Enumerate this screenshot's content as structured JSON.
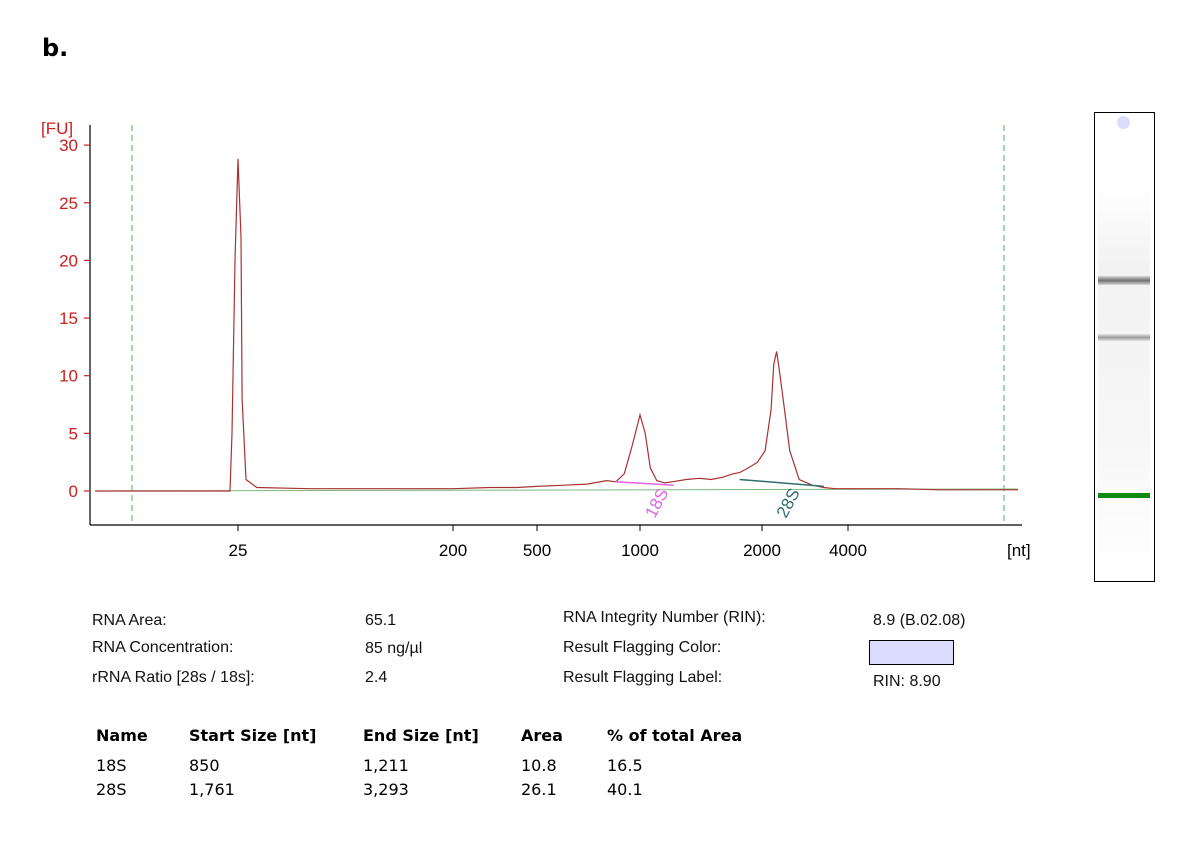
{
  "panel_label": "b.",
  "chart_data": {
    "type": "line",
    "y_unit": "[FU]",
    "x_unit": "[nt]",
    "y_ticks": [
      0,
      5,
      10,
      15,
      20,
      25,
      30
    ],
    "ylim": [
      -3,
      31
    ],
    "x_ticks": [
      "25",
      "200",
      "500",
      "1000",
      "2000",
      "4000"
    ],
    "x_scale": "log-like (electropherogram size axis)",
    "grid": false,
    "series": [
      {
        "color": "#a83232",
        "x": [
          25,
          25,
          25,
          25,
          25,
          26,
          27,
          30,
          50,
          100,
          200,
          300,
          400,
          500,
          600,
          700,
          800,
          850,
          900,
          950,
          1000,
          1030,
          1060,
          1100,
          1150,
          1200,
          1300,
          1400,
          1500,
          1600,
          1700,
          1761,
          1850,
          1950,
          2050,
          2150,
          2200,
          2250,
          2300,
          2400,
          2500,
          2700,
          3000,
          3293,
          3600,
          4000,
          5000,
          6000,
          8000
        ],
        "y": [
          0.0,
          5.0,
          20.0,
          28.8,
          22.0,
          8.0,
          1.0,
          0.3,
          0.2,
          0.2,
          0.2,
          0.3,
          0.3,
          0.4,
          0.5,
          0.6,
          0.9,
          0.8,
          1.5,
          4.0,
          6.6,
          5.0,
          2.0,
          0.9,
          0.7,
          0.8,
          1.0,
          1.1,
          1.0,
          1.2,
          1.5,
          1.6,
          2.0,
          2.5,
          3.5,
          7.0,
          11.0,
          12.1,
          10.5,
          7.0,
          3.5,
          1.0,
          0.5,
          0.3,
          0.2,
          0.2,
          0.2,
          0.1,
          0.1
        ]
      }
    ],
    "peak_labels": [
      {
        "text": "18S",
        "color": "#e066e0"
      },
      {
        "text": "28S",
        "color": "#2f6f70"
      }
    ],
    "dashed_markers": {
      "color": "#4caf50"
    }
  },
  "summary": {
    "left": [
      {
        "label": "RNA Area:",
        "value": "65.1"
      },
      {
        "label": "RNA Concentration:",
        "value": "85 ng/µl"
      },
      {
        "label": "rRNA Ratio [28s / 18s]:",
        "value": "2.4"
      }
    ],
    "right": [
      {
        "label": "RNA Integrity Number (RIN):",
        "value": "8.9  (B.02.08)"
      },
      {
        "label": "Result Flagging Color:",
        "value": ""
      },
      {
        "label": "Result Flagging Label:",
        "value": "RIN: 8.90"
      }
    ],
    "flag_color": "#dcdcff"
  },
  "peak_table": {
    "headers": [
      "Name",
      "Start Size [nt]",
      "End Size [nt]",
      "Area",
      "% of total Area"
    ],
    "rows": [
      [
        "18S",
        "850",
        "1,211",
        "10.8",
        "16.5"
      ],
      [
        "28S",
        "1,761",
        "3,293",
        "26.1",
        "40.1"
      ]
    ]
  },
  "gel_colors": {
    "marker": "#0f8a0f",
    "dot": "#dcdcff"
  }
}
